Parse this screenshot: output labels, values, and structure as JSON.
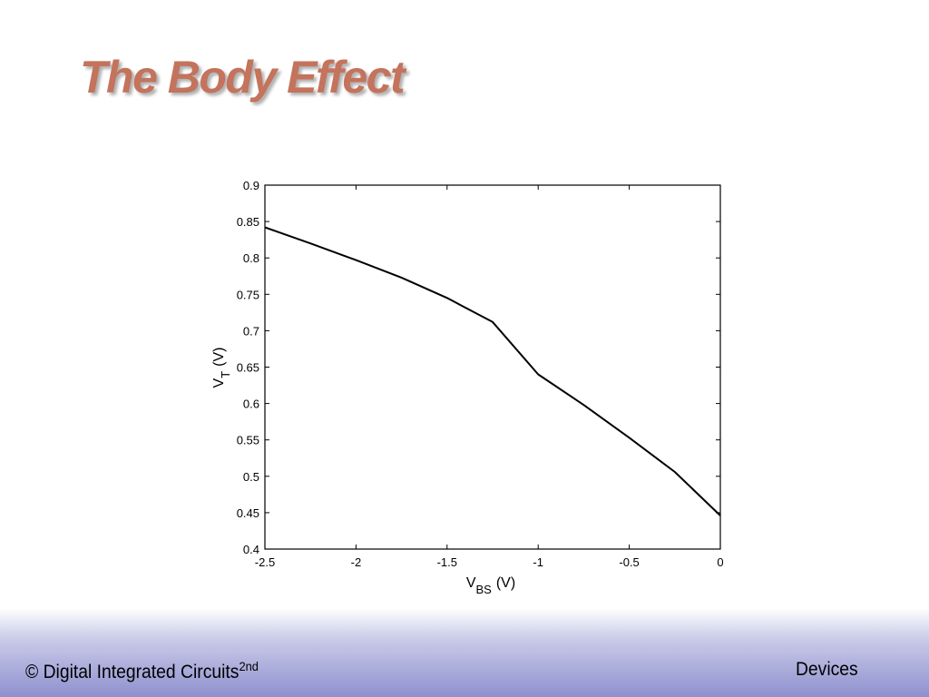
{
  "slide": {
    "title": "The Body Effect"
  },
  "chart_data": {
    "type": "line",
    "title": "",
    "xlabel": {
      "main": "V",
      "sub": "BS",
      "unit": "(V)"
    },
    "ylabel": {
      "main": "V",
      "sub": "T",
      "unit": "(V)"
    },
    "xlim": [
      -2.5,
      0
    ],
    "ylim": [
      0.4,
      0.9
    ],
    "x_ticks": [
      "-2.5",
      "-2",
      "-1.5",
      "-1",
      "-0.5",
      "0"
    ],
    "y_ticks": [
      "0.4",
      "0.45",
      "0.5",
      "0.55",
      "0.6",
      "0.65",
      "0.7",
      "0.75",
      "0.8",
      "0.85",
      "0.9"
    ],
    "grid": false,
    "series": [
      {
        "x": [
          -2.5,
          -2.25,
          -2.0,
          -1.75,
          -1.5,
          -1.25,
          -1.0,
          -0.75,
          -0.5,
          -0.25,
          0.0
        ],
        "y": [
          0.842,
          0.82,
          0.797,
          0.773,
          0.745,
          0.712,
          0.64,
          0.598,
          0.553,
          0.506,
          0.446
        ]
      }
    ]
  },
  "footer": {
    "left_text": "© Digital Integrated Circuits",
    "left_sup": "2nd",
    "right_text": "Devices"
  }
}
